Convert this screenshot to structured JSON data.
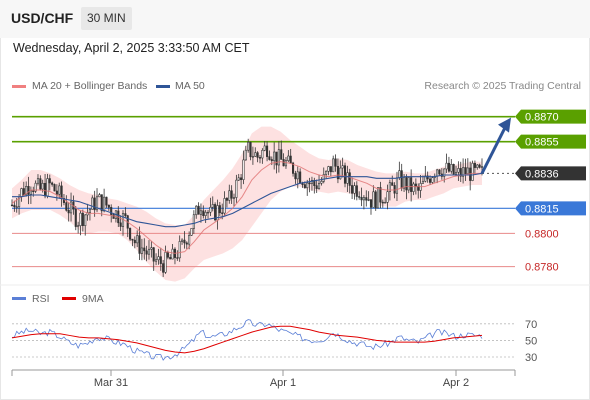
{
  "header": {
    "symbol": "USD/CHF",
    "timeframe": "30 MIN",
    "datetime": "Wednesday, April 2, 2025 3:33:50 AM CET"
  },
  "legend": {
    "items": [
      {
        "label": "MA 20 + Bollinger Bands",
        "color": "#f08080"
      },
      {
        "label": "MA 50",
        "color": "#2f5597"
      }
    ],
    "credit": "Research © 2025 Trading Central"
  },
  "colors": {
    "up": "#2e7d32",
    "down": "#c62828",
    "resistance": "#5aa000",
    "pivot": "#3a78d8",
    "support": "#e88a8a",
    "current": "#333333",
    "band": "#fcd9d9",
    "arrow": "#2f5597",
    "ma20": "#e07070",
    "ma50": "#2f5597",
    "rsi": "#5b7fd6",
    "rsi_ma": "#e00000"
  },
  "chart_data": [
    {
      "type": "candlestick",
      "x_ticks": [
        "Mar 31",
        "Apr 1",
        "Apr 2"
      ],
      "y_range": [
        0.8772,
        0.8883
      ],
      "levels": [
        {
          "label": "0.8870",
          "value": 0.887,
          "kind": "resistance"
        },
        {
          "label": "0.8855",
          "value": 0.8855,
          "kind": "resistance"
        },
        {
          "label": "0.8836",
          "value": 0.8836,
          "kind": "current"
        },
        {
          "label": "0.8815",
          "value": 0.8815,
          "kind": "pivot"
        },
        {
          "label": "0.8800",
          "value": 0.88,
          "kind": "support"
        },
        {
          "label": "0.8780",
          "value": 0.878,
          "kind": "support"
        }
      ],
      "projection": {
        "from": 0.8836,
        "to": 0.8867
      },
      "price_path": [
        0.8817,
        0.8825,
        0.883,
        0.8826,
        0.8829,
        0.8823,
        0.8815,
        0.8808,
        0.8813,
        0.882,
        0.8817,
        0.8812,
        0.8808,
        0.8795,
        0.879,
        0.8784,
        0.8782,
        0.8785,
        0.8792,
        0.8805,
        0.8818,
        0.8811,
        0.8815,
        0.882,
        0.8832,
        0.885,
        0.8846,
        0.8852,
        0.8845,
        0.8842,
        0.8838,
        0.8832,
        0.8829,
        0.8832,
        0.8842,
        0.8835,
        0.8828,
        0.8826,
        0.882,
        0.8822,
        0.8825,
        0.8832,
        0.8828,
        0.8825,
        0.8833,
        0.884,
        0.8838,
        0.8835,
        0.8837,
        0.8836
      ],
      "ma20": [
        0.8818,
        0.8822,
        0.8826,
        0.8826,
        0.8825,
        0.8822,
        0.8818,
        0.8814,
        0.8812,
        0.8812,
        0.8811,
        0.881,
        0.8807,
        0.8803,
        0.8798,
        0.8793,
        0.8789,
        0.8788,
        0.8789,
        0.8795,
        0.8802,
        0.8806,
        0.881,
        0.8815,
        0.8822,
        0.8832,
        0.8838,
        0.8842,
        0.8843,
        0.8842,
        0.884,
        0.8837,
        0.8835,
        0.8834,
        0.8835,
        0.8834,
        0.8832,
        0.883,
        0.8827,
        0.8826,
        0.8826,
        0.8828,
        0.8828,
        0.8828,
        0.883,
        0.8832,
        0.8834,
        0.8835,
        0.8836,
        0.8836
      ],
      "ma50": [
        0.8822,
        0.8822,
        0.8823,
        0.8823,
        0.8822,
        0.8821,
        0.882,
        0.8819,
        0.8817,
        0.8815,
        0.8813,
        0.8811,
        0.8809,
        0.8807,
        0.8806,
        0.8805,
        0.8804,
        0.8804,
        0.8805,
        0.8806,
        0.8808,
        0.8809,
        0.881,
        0.8812,
        0.8815,
        0.8818,
        0.8821,
        0.8824,
        0.8826,
        0.8828,
        0.883,
        0.8831,
        0.8832,
        0.8833,
        0.8834,
        0.8834,
        0.8834,
        0.8834,
        0.8833,
        0.8833,
        0.8833,
        0.8834,
        0.8834,
        0.8834,
        0.8834,
        0.8835,
        0.8835,
        0.8835,
        0.8835,
        0.8836
      ],
      "band_width": [
        0.0009,
        0.001,
        0.0012,
        0.0012,
        0.0011,
        0.0011,
        0.0011,
        0.0012,
        0.0012,
        0.0011,
        0.001,
        0.001,
        0.0011,
        0.0013,
        0.0015,
        0.0016,
        0.0017,
        0.0017,
        0.0016,
        0.0016,
        0.0018,
        0.002,
        0.0022,
        0.0024,
        0.0026,
        0.0028,
        0.0026,
        0.0022,
        0.0018,
        0.0014,
        0.0012,
        0.0011,
        0.001,
        0.001,
        0.001,
        0.001,
        0.0009,
        0.0009,
        0.001,
        0.001,
        0.001,
        0.0009,
        0.0008,
        0.0008,
        0.0008,
        0.0008,
        0.0007,
        0.0007,
        0.0007,
        0.0007
      ]
    },
    {
      "type": "line",
      "legend": [
        {
          "name": "RSI",
          "color": "#5b7fd6"
        },
        {
          "name": "9MA",
          "color": "#e00000"
        }
      ],
      "y_ticks": [
        70,
        50,
        30
      ],
      "y_range": [
        24,
        77
      ],
      "series": [
        {
          "name": "RSI",
          "values": [
            55,
            60,
            62,
            58,
            60,
            55,
            48,
            44,
            47,
            54,
            52,
            48,
            45,
            38,
            34,
            30,
            29,
            32,
            38,
            48,
            60,
            54,
            56,
            60,
            66,
            72,
            68,
            70,
            64,
            60,
            56,
            52,
            50,
            52,
            60,
            54,
            48,
            46,
            42,
            44,
            47,
            54,
            50,
            48,
            54,
            60,
            58,
            55,
            57,
            56
          ]
        },
        {
          "name": "9MA",
          "values": [
            53,
            55,
            57,
            58,
            58,
            58,
            56,
            54,
            53,
            53,
            52,
            51,
            49,
            47,
            44,
            41,
            38,
            36,
            35,
            37,
            40,
            44,
            48,
            52,
            56,
            60,
            63,
            66,
            67,
            67,
            65,
            63,
            60,
            58,
            56,
            55,
            54,
            52,
            50,
            49,
            48,
            48,
            48,
            48,
            49,
            51,
            53,
            54,
            55,
            56
          ]
        }
      ]
    }
  ]
}
